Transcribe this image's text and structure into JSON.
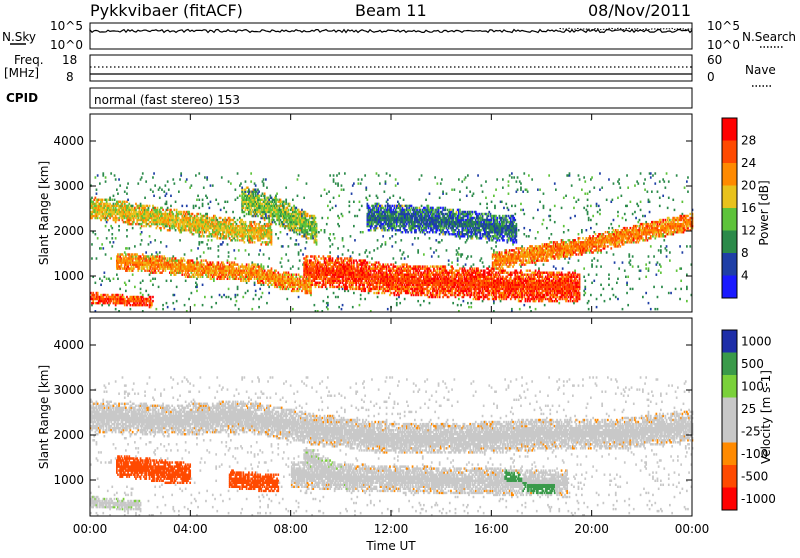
{
  "header": {
    "station": "Pykkvibaer (fitACF)",
    "beam": "Beam 11",
    "date": "08/Nov/2011"
  },
  "strip_nsky": {
    "left_label": "N.Sky",
    "right_label": "N.Search",
    "left_ticks": [
      "10^5",
      "10^0"
    ],
    "right_ticks": [
      "10^5",
      "10^0"
    ]
  },
  "strip_freq": {
    "left_label_1": "Freq.",
    "left_label_2": "[MHz]",
    "right_label": "Nave",
    "left_ticks": [
      "18",
      "8"
    ],
    "right_ticks": [
      "60",
      "0"
    ]
  },
  "cpid": {
    "label": "CPID",
    "text": "normal (fast stereo) 153"
  },
  "colors": {
    "power_scale": [
      "#1a1aff",
      "#1f3fa6",
      "#2b8a4a",
      "#5ec33a",
      "#e8c21c",
      "#ff8a00",
      "#ff4a00",
      "#ff0000"
    ],
    "velocity_scale": [
      "#ff0000",
      "#ff4a00",
      "#ff8a00",
      "#c8c8c8",
      "#c8c8c8",
      "#7ad13a",
      "#3a9a4a",
      "#1e2ea8"
    ]
  },
  "chart_data": [
    {
      "type": "heatmap",
      "name": "power",
      "ylabel": "Slant Range [km]",
      "y_ticks": [
        "1000",
        "2000",
        "3000",
        "4000"
      ],
      "ylim": [
        200,
        4600
      ],
      "colorbar_label": "Power [dB]",
      "colorbar_ticks": [
        "4",
        "8",
        "12",
        "16",
        "20",
        "24",
        "28"
      ],
      "bands": [
        {
          "t": [
            0,
            2.5,
            4.5,
            6.5,
            7.2
          ],
          "r": [
            2500,
            2300,
            2100,
            1950,
            1900
          ],
          "w": 250,
          "v": 18
        },
        {
          "t": [
            1.0,
            2.5,
            4.0,
            6.5,
            7.5,
            8.8
          ],
          "r": [
            1300,
            1250,
            1150,
            1050,
            900,
            750
          ],
          "w": 200,
          "v": 22
        },
        {
          "t": [
            8.5,
            10,
            12,
            14,
            16,
            18,
            19.5
          ],
          "r": [
            1100,
            1050,
            900,
            850,
            800,
            750,
            750
          ],
          "w": 350,
          "v": 27
        },
        {
          "t": [
            16,
            18,
            20,
            22,
            24
          ],
          "r": [
            1300,
            1500,
            1700,
            1950,
            2200
          ],
          "w": 200,
          "v": 23
        },
        {
          "t": [
            0,
            1,
            2.5
          ],
          "r": [
            500,
            450,
            400
          ],
          "w": 120,
          "v": 26
        },
        {
          "t": [
            11,
            14,
            17
          ],
          "r": [
            2300,
            2200,
            2000
          ],
          "w": 300,
          "v": 8
        },
        {
          "t": [
            6,
            7.5,
            9
          ],
          "r": [
            2700,
            2400,
            2000
          ],
          "w": 300,
          "v": 14
        }
      ]
    },
    {
      "type": "heatmap",
      "name": "velocity",
      "ylabel": "Slant Range [km]",
      "y_ticks": [
        "1000",
        "2000",
        "3000",
        "4000"
      ],
      "ylim": [
        200,
        4600
      ],
      "colorbar_label": "Velocity [m s-1]",
      "colorbar_ticks": [
        "1000",
        "500",
        "100",
        "25",
        "-25",
        "-100",
        "-500",
        "-1000"
      ],
      "xlabel": "Time UT",
      "x_ticks": [
        "00:00",
        "04:00",
        "08:00",
        "12:00",
        "16:00",
        "20:00",
        "00:00"
      ],
      "xlim": [
        0,
        24
      ],
      "bands": [
        {
          "t": [
            0,
            3,
            6,
            9,
            12,
            15,
            18,
            21,
            24
          ],
          "r": [
            2400,
            2300,
            2400,
            2100,
            1900,
            1900,
            2000,
            2000,
            2200
          ],
          "w": 350,
          "v": 0
        },
        {
          "t": [
            8,
            12,
            16,
            19
          ],
          "r": [
            1100,
            1000,
            950,
            900
          ],
          "w": 300,
          "v": 0
        },
        {
          "t": [
            1,
            2.5,
            4
          ],
          "r": [
            1300,
            1200,
            1100
          ],
          "w": 250,
          "v": -300
        },
        {
          "t": [
            5.5,
            6.5,
            7.5
          ],
          "r": [
            1000,
            950,
            900
          ],
          "w": 200,
          "v": -300
        },
        {
          "t": [
            0,
            1,
            2
          ],
          "r": [
            500,
            450,
            420
          ],
          "w": 120,
          "v": 80
        },
        {
          "t": [
            8.5,
            9.5,
            10.5
          ],
          "r": [
            1500,
            1200,
            900
          ],
          "w": 250,
          "v": 80
        },
        {
          "t": [
            16.5,
            17.5,
            18.5
          ],
          "r": [
            1000,
            900,
            850
          ],
          "w": 200,
          "v": 700
        }
      ]
    }
  ]
}
